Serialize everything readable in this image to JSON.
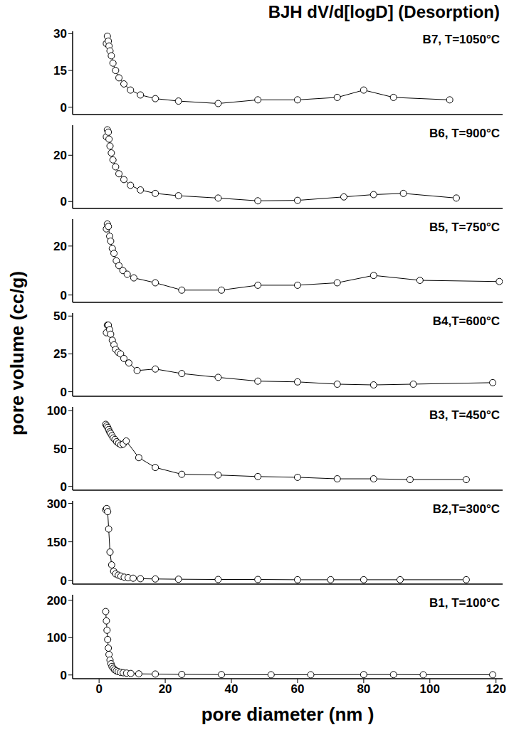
{
  "title": "BJH dV/d[logD] (Desorption)",
  "x_label": "pore diameter (nm )",
  "y_label": "pore volume (cc/g)",
  "chart_data": [
    {
      "type": "line",
      "annotation": "B7, T=1050°C",
      "color": "#000000",
      "marker": "circle",
      "tick_labels": "y",
      "x": [
        2.2,
        2.5,
        2.8,
        3.0,
        3.3,
        3.7,
        4.2,
        5.0,
        6.0,
        7.5,
        9.5,
        12.5,
        17,
        24,
        36,
        48,
        60,
        72,
        80,
        89,
        106
      ],
      "values": [
        26,
        29,
        27,
        25,
        23,
        21,
        18,
        15,
        12,
        9.5,
        7,
        5,
        3.5,
        2.5,
        1.5,
        3,
        3,
        4,
        7,
        4,
        3
      ],
      "xlim": [
        -8,
        122
      ],
      "ylim": [
        -3,
        31
      ],
      "yticks": [
        0,
        15,
        30
      ]
    },
    {
      "type": "line",
      "annotation": "B6, T=900°C",
      "color": "#000000",
      "marker": "circle",
      "tick_labels": "y",
      "x": [
        2.2,
        2.5,
        2.8,
        3.0,
        3.3,
        3.7,
        4.2,
        5.0,
        6.0,
        7.5,
        9.5,
        12.5,
        17,
        24,
        36,
        48,
        60,
        74,
        83,
        92,
        108
      ],
      "values": [
        28,
        31,
        30,
        27,
        24,
        21,
        18,
        15,
        12,
        9.5,
        7,
        5,
        3.5,
        2.5,
        1.5,
        0.3,
        0.5,
        2,
        3,
        3.5,
        1.5
      ],
      "xlim": [
        -8,
        122
      ],
      "ylim": [
        -3,
        33
      ],
      "yticks": [
        0,
        20
      ]
    },
    {
      "type": "line",
      "annotation": "B5, T=750°C",
      "color": "#000000",
      "marker": "circle",
      "tick_labels": "y",
      "x": [
        2.2,
        2.5,
        2.8,
        3.2,
        3.5,
        4.0,
        4.5,
        5.2,
        6.0,
        7.2,
        8.5,
        10.5,
        17,
        25,
        37,
        48,
        60,
        72,
        83,
        97,
        121
      ],
      "values": [
        27,
        29,
        28,
        24,
        22,
        19,
        17,
        14,
        12,
        10,
        8.5,
        7,
        5,
        2,
        2,
        4,
        4,
        5,
        8,
        6,
        5.5
      ],
      "xlim": [
        -8,
        122
      ],
      "ylim": [
        -3,
        31
      ],
      "yticks": [
        0,
        20
      ]
    },
    {
      "type": "line",
      "annotation": "B4,T=600°C",
      "color": "#000000",
      "marker": "circle",
      "tick_labels": "y",
      "x": [
        2.2,
        2.5,
        2.8,
        3.2,
        3.5,
        4.0,
        4.5,
        5.0,
        5.8,
        6.5,
        7.5,
        9.0,
        11.5,
        17,
        25,
        36,
        48,
        60,
        72,
        83,
        95,
        119
      ],
      "values": [
        39,
        44,
        44,
        41,
        38,
        34,
        31,
        28,
        26,
        25,
        22,
        19,
        14,
        15,
        12,
        9.5,
        7,
        6.5,
        5,
        4.5,
        5,
        6
      ],
      "xlim": [
        -8,
        122
      ],
      "ylim": [
        -3,
        52
      ],
      "yticks": [
        0,
        25,
        50
      ]
    },
    {
      "type": "line",
      "annotation": "B3, T=450°C",
      "color": "#000000",
      "marker": "circle",
      "tick_labels": "y",
      "x": [
        2.0,
        2.3,
        2.6,
        2.9,
        3.2,
        3.5,
        3.9,
        4.3,
        4.8,
        5.3,
        5.9,
        6.6,
        7.3,
        8.2,
        12,
        17,
        25,
        36,
        48,
        60,
        72,
        83,
        94,
        111
      ],
      "values": [
        82,
        80,
        78,
        75,
        72,
        70,
        67,
        64,
        62,
        59,
        57,
        55,
        56,
        60,
        38,
        25,
        16,
        15,
        13,
        12,
        10,
        10,
        9,
        9
      ],
      "xlim": [
        -8,
        122
      ],
      "ylim": [
        -5,
        105
      ],
      "yticks": [
        0,
        50,
        100
      ]
    },
    {
      "type": "line",
      "annotation": "B2,T=300°C",
      "color": "#000000",
      "marker": "circle",
      "tick_labels": "y",
      "x": [
        2.0,
        2.3,
        2.6,
        2.9,
        3.3,
        3.8,
        4.4,
        5.0,
        5.8,
        6.6,
        7.6,
        8.8,
        10.3,
        12.5,
        17,
        24,
        36,
        48,
        60,
        70,
        80,
        91,
        111
      ],
      "values": [
        275,
        280,
        268,
        200,
        110,
        60,
        35,
        25,
        20,
        16,
        12,
        10,
        8,
        6,
        5,
        4,
        3,
        3,
        2,
        2,
        2,
        2,
        2
      ],
      "xlim": [
        -8,
        122
      ],
      "ylim": [
        -15,
        310
      ],
      "yticks": [
        0,
        150,
        300
      ]
    },
    {
      "type": "line",
      "annotation": "B1, T=100°C",
      "color": "#000000",
      "marker": "circle",
      "x": [
        2.0,
        2.2,
        2.4,
        2.6,
        2.8,
        3.0,
        3.3,
        3.6,
        3.9,
        4.3,
        4.7,
        5.2,
        5.8,
        6.5,
        7.3,
        8.3,
        9.6,
        12,
        17,
        25,
        37,
        52,
        64,
        80,
        89,
        98,
        119
      ],
      "values": [
        170,
        145,
        120,
        95,
        72,
        55,
        40,
        30,
        23,
        18,
        14,
        11,
        9,
        7,
        6,
        5,
        4,
        3,
        2.5,
        1.5,
        1,
        0.5,
        0.5,
        1,
        1,
        0.5,
        0.5
      ],
      "xlim": [
        -8,
        122
      ],
      "xticks": [
        0,
        20,
        40,
        60,
        80,
        100,
        120
      ],
      "ylim": [
        -10,
        215
      ],
      "yticks": [
        0,
        100,
        200
      ]
    }
  ]
}
